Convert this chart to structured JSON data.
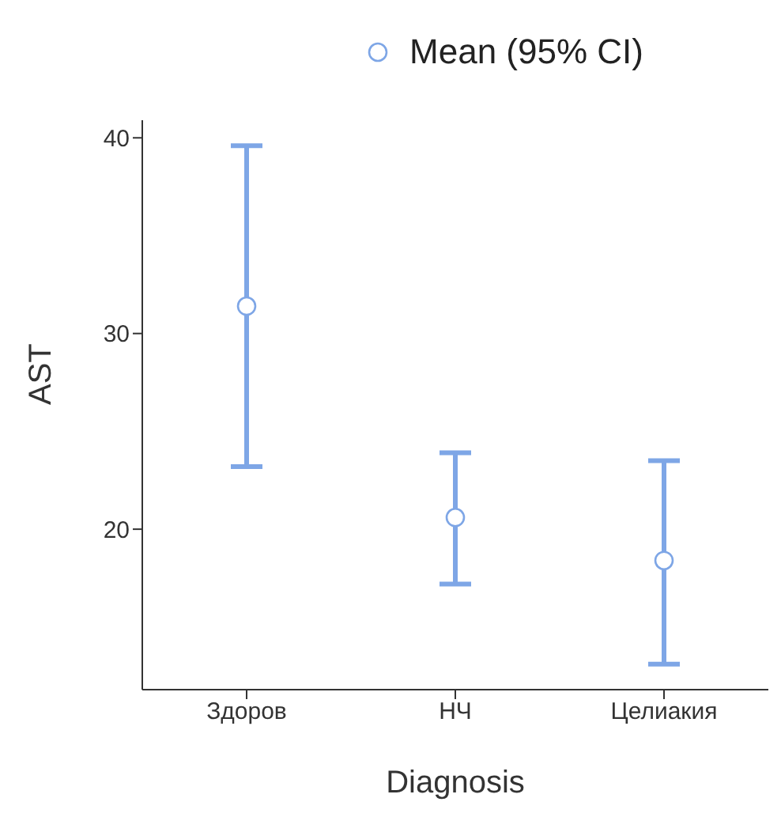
{
  "chart_data": {
    "type": "scatter",
    "xlabel": "Diagnosis",
    "ylabel": "AST",
    "categories": [
      "Здоров",
      "НЧ",
      "Целиакия"
    ],
    "series": [
      {
        "name": "Mean (95% CI)",
        "color": "#7ea6e6",
        "values": [
          31.4,
          20.6,
          18.4
        ],
        "errors": [
          [
            23.2,
            39.6
          ],
          [
            17.2,
            23.9
          ],
          [
            13.1,
            23.5
          ]
        ]
      }
    ],
    "ylim": [
      11.8,
      40.9
    ],
    "yticks": [
      20,
      30,
      40
    ],
    "grid": false,
    "legend": "top",
    "marker": "circle"
  }
}
